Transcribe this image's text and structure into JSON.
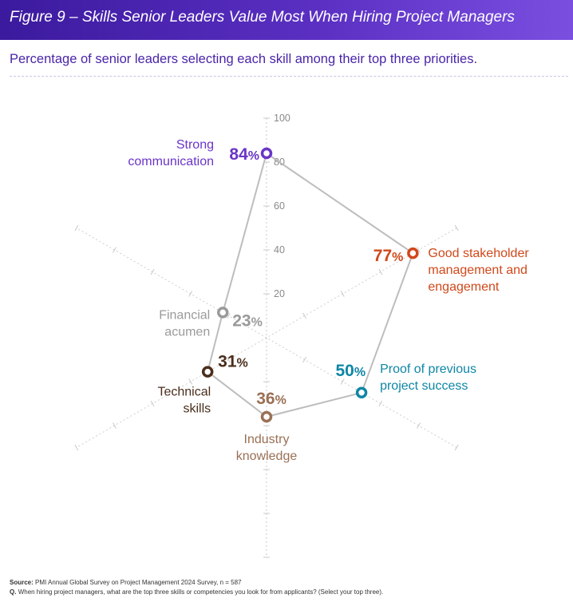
{
  "header": {
    "title": "Figure 9 – Skills Senior Leaders Value Most When Hiring Project Managers",
    "subtitle": "Percentage of senior leaders selecting each skill among their top three priorities."
  },
  "footer": {
    "source_label": "Source:",
    "source_text": "PMI Annual Global Survey on Project Management 2024 Survey, n = 587",
    "question_label": "Q.",
    "question_text": "When hiring project managers, what are the top three skills or competencies you look for from applicants?  (Select your top three)."
  },
  "chart_data": {
    "type": "radar",
    "rlim": [
      0,
      100
    ],
    "ticks": [
      20,
      40,
      60,
      80,
      100
    ],
    "axes": [
      {
        "name": "Strong communication",
        "lines": [
          "Strong",
          "communication"
        ],
        "value": 84,
        "label": "84%",
        "color": "#6a35c8"
      },
      {
        "name": "Good stakeholder management and engagement",
        "lines": [
          "Good stakeholder",
          "management and",
          "engagement"
        ],
        "value": 77,
        "label": "77%",
        "color": "#d0481a"
      },
      {
        "name": "Proof of previous project success",
        "lines": [
          "Proof of previous",
          "project success"
        ],
        "value": 50,
        "label": "50%",
        "color": "#0e86a6"
      },
      {
        "name": "Industry knowledge",
        "lines": [
          "Industry",
          "knowledge"
        ],
        "value": 36,
        "label": "36%",
        "color": "#9a7055"
      },
      {
        "name": "Technical skills",
        "lines": [
          "Technical",
          "skills"
        ],
        "value": 31,
        "label": "31%",
        "color": "#4a2e1c"
      },
      {
        "name": "Financial acumen",
        "lines": [
          "Financial",
          "acumen"
        ],
        "value": 23,
        "label": "23%",
        "color": "#9a9a9a"
      }
    ]
  }
}
